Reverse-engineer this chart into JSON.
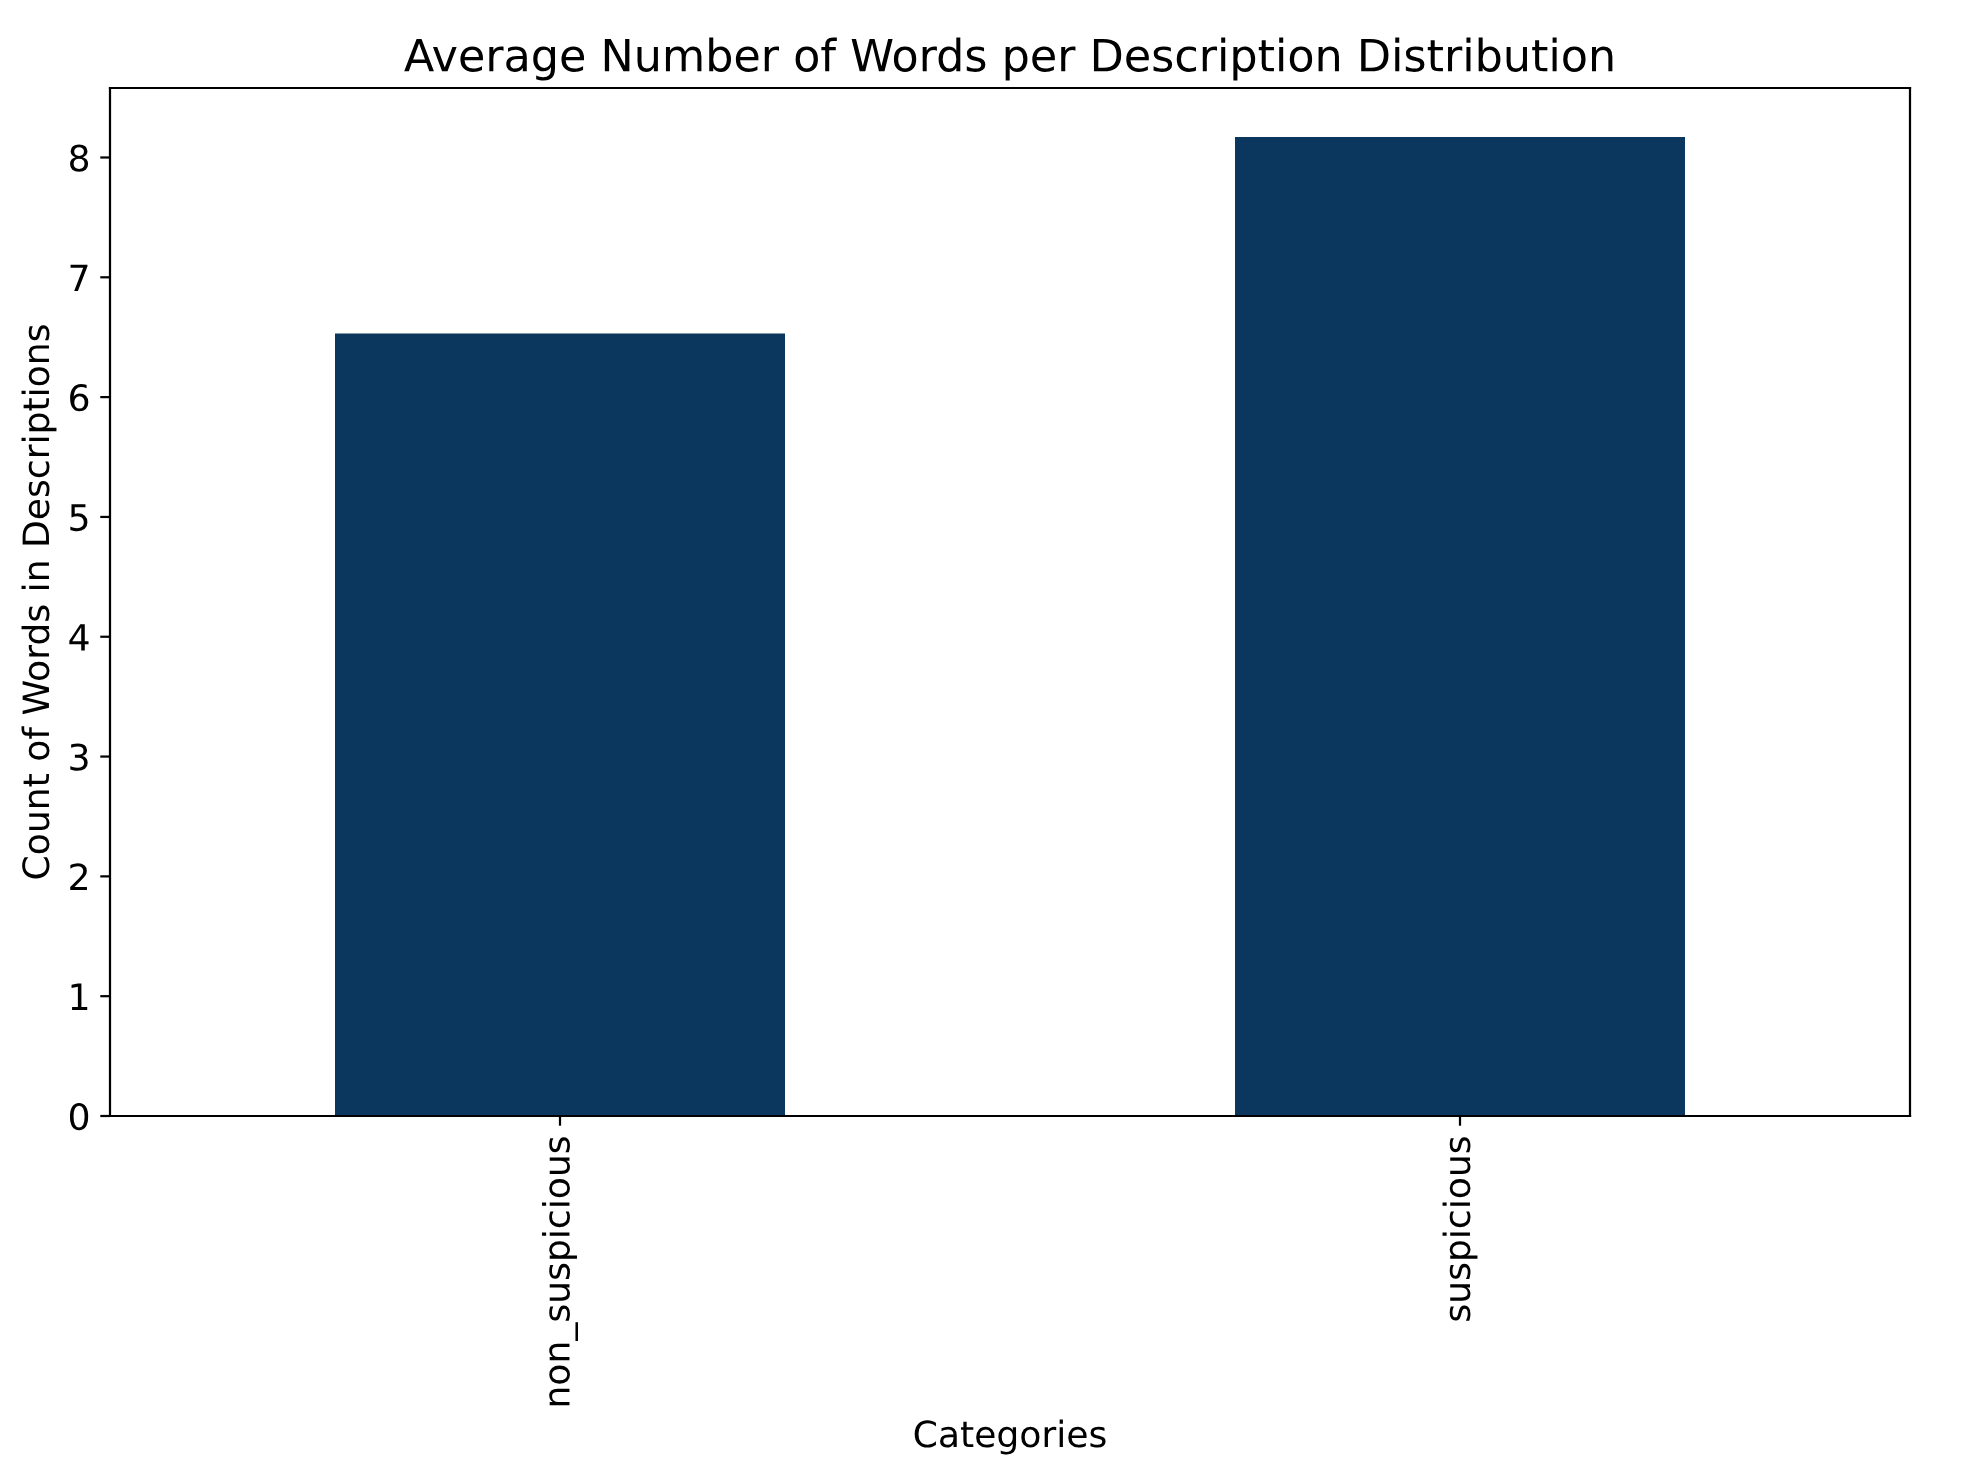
{
  "chart_data": {
    "type": "bar",
    "title": "Average Number of Words per Description Distribution",
    "xlabel": "Categories",
    "ylabel": "Count of Words in Descriptions",
    "categories": [
      "non_suspicious",
      "suspicious"
    ],
    "values": [
      6.53,
      8.17
    ],
    "color": "#0b365e",
    "ylim": [
      0,
      8.58
    ],
    "yticks": [
      0,
      1,
      2,
      3,
      4,
      5,
      6,
      7,
      8
    ],
    "grid": false,
    "legend": false
  }
}
